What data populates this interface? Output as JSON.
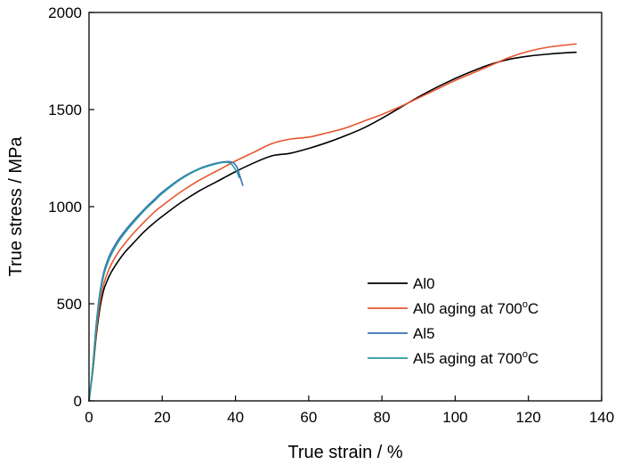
{
  "chart_data": {
    "type": "line",
    "xlabel": "True strain / %",
    "ylabel": "True stress / MPa",
    "xlim": [
      0,
      140
    ],
    "ylim": [
      0,
      2000
    ],
    "xticks": [
      0,
      20,
      40,
      60,
      80,
      100,
      120,
      140
    ],
    "yticks": [
      0,
      500,
      1000,
      1500,
      2000
    ],
    "grid": false,
    "legend_position": "bottom-right",
    "series": [
      {
        "name": "Al0",
        "color": "#000000",
        "x": [
          0,
          1,
          2,
          3,
          4,
          5,
          6,
          8,
          10,
          12,
          15,
          18,
          20,
          25,
          30,
          35,
          40,
          45,
          50,
          55,
          60,
          65,
          70,
          75,
          80,
          85,
          90,
          95,
          100,
          105,
          110,
          115,
          120,
          125,
          130,
          133
        ],
        "y": [
          0,
          150,
          340,
          480,
          570,
          620,
          660,
          720,
          770,
          810,
          870,
          920,
          950,
          1020,
          1080,
          1130,
          1180,
          1225,
          1262,
          1275,
          1300,
          1330,
          1365,
          1405,
          1455,
          1510,
          1565,
          1615,
          1660,
          1700,
          1735,
          1760,
          1775,
          1785,
          1792,
          1795
        ]
      },
      {
        "name": "Al0 aging at 700°C",
        "color": "#e8552e",
        "x": [
          0,
          1,
          2,
          3,
          4,
          5,
          6,
          8,
          10,
          12,
          15,
          18,
          20,
          25,
          30,
          35,
          40,
          45,
          50,
          55,
          60,
          65,
          70,
          75,
          80,
          85,
          90,
          95,
          100,
          105,
          110,
          115,
          120,
          125,
          130,
          133
        ],
        "y": [
          0,
          160,
          360,
          510,
          600,
          655,
          700,
          765,
          815,
          860,
          920,
          975,
          1005,
          1075,
          1135,
          1185,
          1235,
          1280,
          1325,
          1348,
          1358,
          1380,
          1405,
          1440,
          1475,
          1515,
          1560,
          1605,
          1650,
          1690,
          1730,
          1770,
          1800,
          1820,
          1832,
          1838
        ]
      },
      {
        "name": "Al5",
        "color": "#3b6fb6",
        "x": [
          0,
          1,
          2,
          3,
          4,
          5,
          6,
          8,
          10,
          12,
          15,
          18,
          20,
          25,
          30,
          35,
          38,
          39.5,
          40.5,
          41,
          41.5,
          42
        ],
        "y": [
          0,
          170,
          400,
          560,
          660,
          720,
          765,
          830,
          880,
          925,
          985,
          1040,
          1075,
          1145,
          1195,
          1225,
          1232,
          1225,
          1200,
          1170,
          1140,
          1110
        ]
      },
      {
        "name": "Al5 aging at 700°C",
        "color": "#2a9aa0",
        "x": [
          0,
          1,
          2,
          3,
          4,
          5,
          6,
          8,
          10,
          12,
          15,
          18,
          20,
          25,
          30,
          35,
          37,
          38.5,
          39.5,
          40.5,
          41
        ],
        "y": [
          0,
          165,
          390,
          545,
          645,
          705,
          750,
          818,
          870,
          915,
          978,
          1032,
          1068,
          1140,
          1192,
          1222,
          1228,
          1225,
          1205,
          1175,
          1150
        ]
      }
    ]
  },
  "legend": {
    "items": [
      {
        "label": "Al0"
      },
      {
        "label": "Al0 aging at 700",
        "sup": "o",
        "suffix": "C"
      },
      {
        "label": "Al5"
      },
      {
        "label": "Al5 aging at 700",
        "sup": "o",
        "suffix": "C"
      }
    ]
  }
}
